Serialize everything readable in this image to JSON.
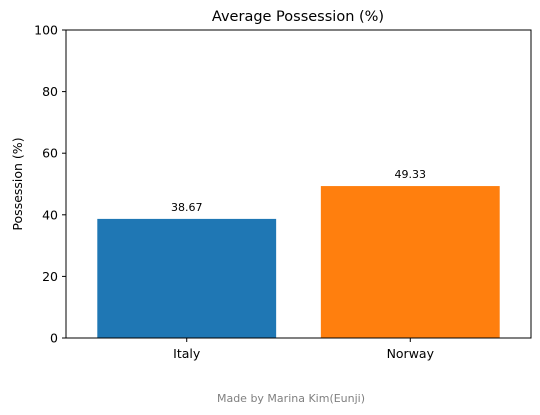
{
  "chart_data": {
    "type": "bar",
    "title": "Average Possession (%)",
    "xlabel": "",
    "ylabel": "Possession (%)",
    "categories": [
      "Italy",
      "Norway"
    ],
    "values": [
      38.67,
      49.33
    ],
    "data_labels": [
      "38.67",
      "49.33"
    ],
    "colors": [
      "#1f77b4",
      "#ff7f0e"
    ],
    "ylim": [
      0,
      100
    ],
    "yticks": [
      0,
      20,
      40,
      60,
      80,
      100
    ],
    "ytick_labels": [
      "0",
      "20",
      "40",
      "60",
      "80",
      "100"
    ],
    "grid": false,
    "legend": "none"
  },
  "footer": {
    "credit": "Made by Marina Kim(Eunji)"
  }
}
